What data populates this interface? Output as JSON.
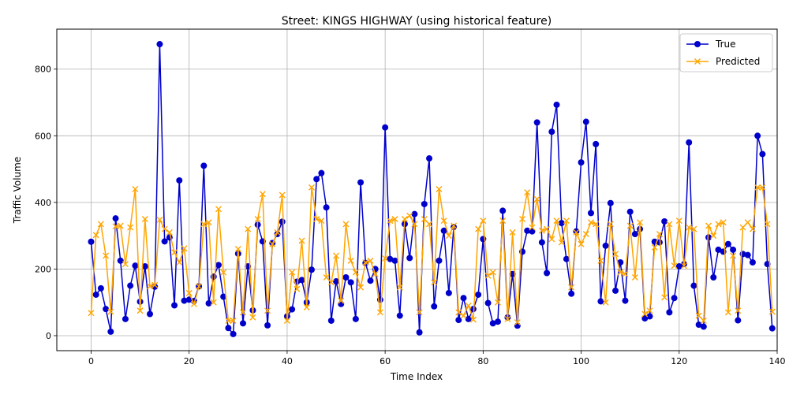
{
  "chart_data": {
    "type": "line",
    "title": "Street: KINGS HIGHWAY (using historical feature)",
    "xlabel": "Time Index",
    "ylabel": "Traffic Volume",
    "xlim": [
      -7,
      140
    ],
    "ylim": [
      -45,
      920
    ],
    "xticks": [
      0,
      20,
      40,
      60,
      80,
      100,
      120,
      140
    ],
    "yticks": [
      0,
      200,
      400,
      600,
      800
    ],
    "grid": true,
    "legend_position": "top-right",
    "series": [
      {
        "name": "True",
        "color": "#0000cc",
        "marker": "circle",
        "values": [
          282,
          123,
          142,
          80,
          12,
          352,
          225,
          50,
          150,
          210,
          102,
          208,
          65,
          147,
          875,
          283,
          295,
          91,
          466,
          105,
          108,
          104,
          148,
          510,
          97,
          177,
          212,
          117,
          23,
          5,
          246,
          37,
          208,
          76,
          333,
          283,
          31,
          278,
          305,
          342,
          58,
          79,
          162,
          167,
          100,
          198,
          470,
          488,
          385,
          45,
          163,
          95,
          175,
          160,
          50,
          460,
          218,
          165,
          200,
          108,
          625,
          230,
          225,
          60,
          335,
          233,
          365,
          10,
          395,
          532,
          88,
          225,
          315,
          128,
          326,
          47,
          113,
          50,
          80,
          123,
          290,
          98,
          37,
          42,
          375,
          55,
          185,
          30,
          252,
          315,
          313,
          640,
          280,
          188,
          612,
          693,
          338,
          230,
          126,
          313,
          520,
          642,
          368,
          575,
          103,
          270,
          398,
          135,
          220,
          105,
          372,
          305,
          320,
          52,
          58,
          282,
          280,
          343,
          70,
          113,
          208,
          215,
          580,
          150,
          33,
          27,
          295,
          175,
          258,
          252,
          275,
          258,
          46,
          245,
          242,
          220,
          600,
          545,
          215,
          22
        ]
      },
      {
        "name": "Predicted",
        "color": "#ffa500",
        "marker": "x",
        "values": [
          68,
          302,
          335,
          240,
          72,
          328,
          330,
          215,
          325,
          440,
          75,
          350,
          148,
          152,
          348,
          320,
          310,
          250,
          220,
          262,
          128,
          95,
          148,
          335,
          340,
          100,
          380,
          190,
          45,
          45,
          260,
          70,
          320,
          55,
          350,
          425,
          75,
          275,
          310,
          422,
          45,
          190,
          140,
          285,
          85,
          445,
          350,
          345,
          175,
          160,
          240,
          105,
          335,
          225,
          190,
          145,
          220,
          225,
          185,
          70,
          232,
          345,
          350,
          145,
          350,
          360,
          335,
          70,
          350,
          335,
          160,
          440,
          345,
          300,
          330,
          70,
          60,
          90,
          48,
          320,
          345,
          180,
          190,
          100,
          345,
          50,
          310,
          40,
          350,
          430,
          325,
          410,
          315,
          320,
          290,
          345,
          280,
          345,
          145,
          310,
          275,
          305,
          340,
          335,
          225,
          100,
          335,
          245,
          190,
          185,
          330,
          175,
          340,
          65,
          75,
          265,
          305,
          115,
          335,
          210,
          345,
          210,
          325,
          320,
          60,
          45,
          330,
          300,
          335,
          340,
          70,
          240,
          75,
          325,
          340,
          320,
          445,
          445,
          335,
          72
        ]
      }
    ]
  }
}
